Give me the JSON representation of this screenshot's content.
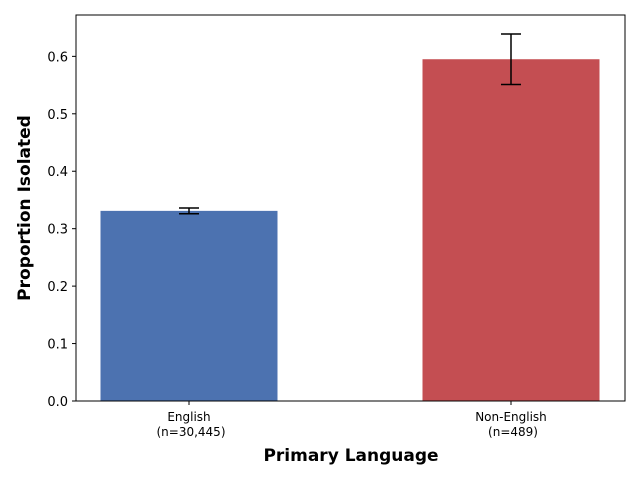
{
  "chart_data": {
    "type": "bar",
    "title": "",
    "xlabel": "Primary Language",
    "ylabel": "Proportion Isolated",
    "categories": [
      [
        "English",
        "(n=30,445)"
      ],
      [
        "Non-English",
        "(n=489)"
      ]
    ],
    "values": [
      0.331,
      0.595
    ],
    "error_low": [
      0.326,
      0.551
    ],
    "error_high": [
      0.336,
      0.639
    ],
    "colors": [
      "#4c72b0",
      "#c44e52"
    ],
    "ylim": [
      0,
      0.672
    ],
    "yticks": [
      0.0,
      0.1,
      0.2,
      0.3,
      0.4,
      0.5,
      0.6
    ],
    "ytick_labels": [
      "0.0",
      "0.1",
      "0.2",
      "0.3",
      "0.4",
      "0.5",
      "0.6"
    ],
    "grid": false,
    "legend": "none"
  }
}
